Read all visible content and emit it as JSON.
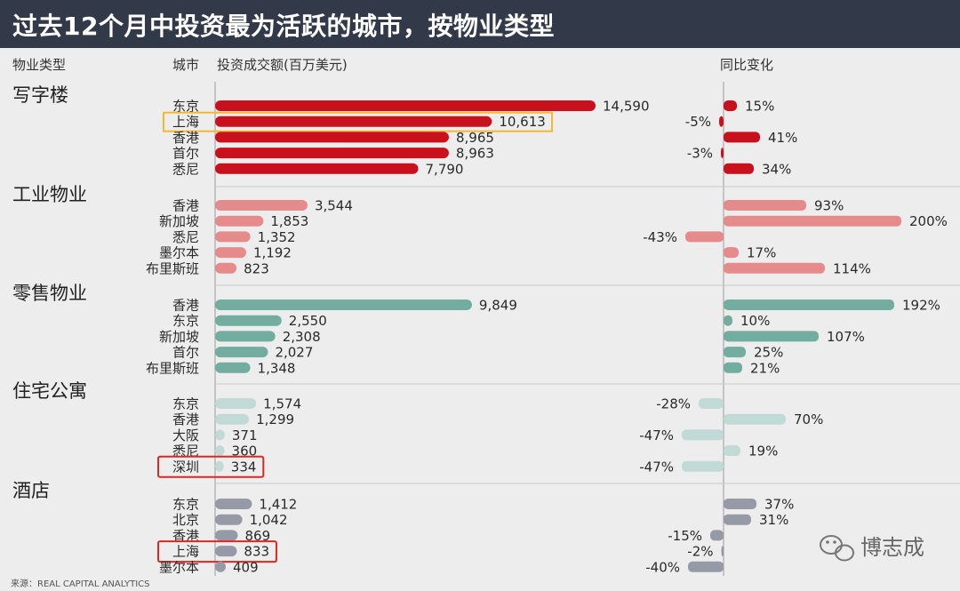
{
  "title": "过去12个月中投资最为活跃的城市，按物业类型",
  "headers": {
    "property_type": "物业类型",
    "city": "城市",
    "volume": "投资成交额(百万美元)",
    "yoy": "同比变化"
  },
  "source": "来源：REAL CAPITAL ANALYTICS",
  "watermark": "博志成",
  "colors": {
    "office": "#c8111c",
    "industrial": "#e58b8c",
    "retail": "#72ad9f",
    "residential": "#c2dad6",
    "hotel": "#9699a6",
    "highlight_yellow": "#f7b733",
    "highlight_red": "#e0261f",
    "title_bg": "#323a4a",
    "background": "#ededee"
  },
  "chart_data": {
    "type": "bar",
    "value_unit": "百万美元",
    "groups": [
      {
        "name": "写字楼",
        "color_key": "office",
        "rows": [
          {
            "city": "东京",
            "volume": 14590,
            "volume_label": "14,590",
            "yoy": 15,
            "yoy_label": "15%"
          },
          {
            "city": "上海",
            "volume": 10613,
            "volume_label": "10,613",
            "yoy": -5,
            "yoy_label": "-5%",
            "highlight": "yellow"
          },
          {
            "city": "香港",
            "volume": 8965,
            "volume_label": "8,965",
            "yoy": 41,
            "yoy_label": "41%"
          },
          {
            "city": "首尔",
            "volume": 8963,
            "volume_label": "8,963",
            "yoy": -3,
            "yoy_label": "-3%"
          },
          {
            "city": "悉尼",
            "volume": 7790,
            "volume_label": "7,790",
            "yoy": 34,
            "yoy_label": "34%"
          }
        ]
      },
      {
        "name": "工业物业",
        "color_key": "industrial",
        "rows": [
          {
            "city": "香港",
            "volume": 3544,
            "volume_label": "3,544",
            "yoy": 93,
            "yoy_label": "93%"
          },
          {
            "city": "新加坡",
            "volume": 1853,
            "volume_label": "1,853",
            "yoy": 200,
            "yoy_label": "200%"
          },
          {
            "city": "悉尼",
            "volume": 1352,
            "volume_label": "1,352",
            "yoy": -43,
            "yoy_label": "-43%"
          },
          {
            "city": "墨尔本",
            "volume": 1192,
            "volume_label": "1,192",
            "yoy": 17,
            "yoy_label": "17%"
          },
          {
            "city": "布里斯班",
            "volume": 823,
            "volume_label": "823",
            "yoy": 114,
            "yoy_label": "114%"
          }
        ]
      },
      {
        "name": "零售物业",
        "color_key": "retail",
        "rows": [
          {
            "city": "香港",
            "volume": 9849,
            "volume_label": "9,849",
            "yoy": 192,
            "yoy_label": "192%"
          },
          {
            "city": "东京",
            "volume": 2550,
            "volume_label": "2,550",
            "yoy": 10,
            "yoy_label": "10%"
          },
          {
            "city": "新加坡",
            "volume": 2308,
            "volume_label": "2,308",
            "yoy": 107,
            "yoy_label": "107%"
          },
          {
            "city": "首尔",
            "volume": 2027,
            "volume_label": "2,027",
            "yoy": 25,
            "yoy_label": "25%"
          },
          {
            "city": "布里斯班",
            "volume": 1348,
            "volume_label": "1,348",
            "yoy": 21,
            "yoy_label": "21%"
          }
        ]
      },
      {
        "name": "住宅公寓",
        "color_key": "residential",
        "rows": [
          {
            "city": "东京",
            "volume": 1574,
            "volume_label": "1,574",
            "yoy": -28,
            "yoy_label": "-28%"
          },
          {
            "city": "香港",
            "volume": 1299,
            "volume_label": "1,299",
            "yoy": 70,
            "yoy_label": "70%"
          },
          {
            "city": "大阪",
            "volume": 371,
            "volume_label": "371",
            "yoy": -47,
            "yoy_label": "-47%"
          },
          {
            "city": "悉尼",
            "volume": 360,
            "volume_label": "360",
            "yoy": 19,
            "yoy_label": "19%"
          },
          {
            "city": "深圳",
            "volume": 334,
            "volume_label": "334",
            "yoy": -47,
            "yoy_label": "-47%",
            "highlight": "red"
          }
        ]
      },
      {
        "name": "酒店",
        "color_key": "hotel",
        "rows": [
          {
            "city": "东京",
            "volume": 1412,
            "volume_label": "1,412",
            "yoy": 37,
            "yoy_label": "37%"
          },
          {
            "city": "北京",
            "volume": 1042,
            "volume_label": "1,042",
            "yoy": 31,
            "yoy_label": "31%"
          },
          {
            "city": "香港",
            "volume": 869,
            "volume_label": "869",
            "yoy": -15,
            "yoy_label": "-15%"
          },
          {
            "city": "上海",
            "volume": 833,
            "volume_label": "833",
            "yoy": -2,
            "yoy_label": "-2%",
            "highlight": "red"
          },
          {
            "city": "墨尔本",
            "volume": 409,
            "volume_label": "409",
            "yoy": -40,
            "yoy_label": "-40%"
          }
        ]
      }
    ]
  }
}
